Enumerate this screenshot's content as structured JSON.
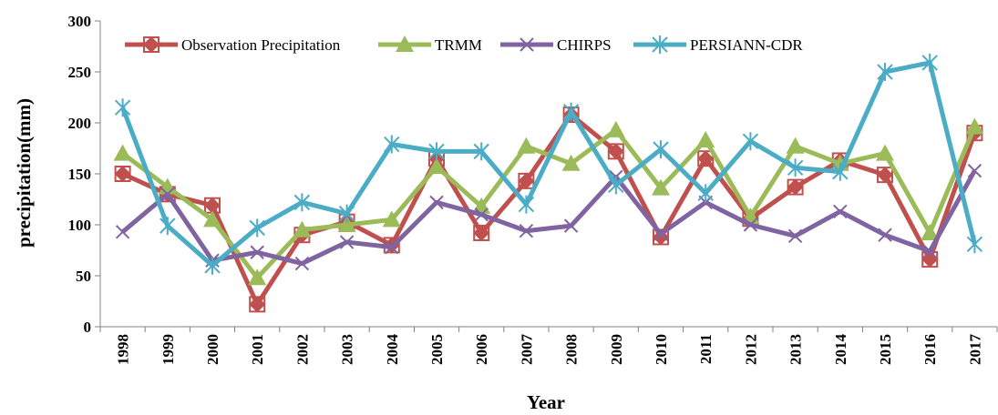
{
  "chart_data": {
    "type": "line",
    "xlabel": "Year",
    "ylabel": "precipitation(mm)",
    "ylim": [
      0,
      300
    ],
    "yticks": [
      0,
      50,
      100,
      150,
      200,
      250,
      300
    ],
    "grid": false,
    "legend_position": "top",
    "categories": [
      "1998",
      "1999",
      "2000",
      "2001",
      "2002",
      "2003",
      "2004",
      "2005",
      "2006",
      "2007",
      "2008",
      "2009",
      "2010",
      "2011",
      "2012",
      "2013",
      "2014",
      "2015",
      "2016",
      "2017"
    ],
    "series": [
      {
        "name": "Observation Precipitation",
        "color": "#c0504d",
        "marker": "square-diamond",
        "values": [
          150,
          130,
          119,
          22,
          90,
          103,
          80,
          165,
          92,
          143,
          208,
          172,
          88,
          165,
          106,
          137,
          163,
          149,
          66,
          190
        ]
      },
      {
        "name": "TRMM",
        "color": "#9bbb59",
        "marker": "triangle",
        "values": [
          170,
          137,
          105,
          48,
          95,
          100,
          105,
          157,
          118,
          177,
          160,
          193,
          136,
          183,
          108,
          177,
          160,
          170,
          92,
          196
        ]
      },
      {
        "name": "CHIRPS",
        "color": "#8064a2",
        "marker": "x",
        "values": [
          93,
          130,
          65,
          73,
          62,
          83,
          78,
          122,
          110,
          94,
          99,
          147,
          91,
          122,
          100,
          89,
          113,
          90,
          74,
          153
        ]
      },
      {
        "name": "PERSIANN-CDR",
        "color": "#4bacc6",
        "marker": "star",
        "values": [
          215,
          99,
          60,
          97,
          122,
          111,
          179,
          172,
          172,
          120,
          211,
          139,
          174,
          131,
          182,
          156,
          152,
          250,
          259,
          81
        ]
      }
    ]
  }
}
